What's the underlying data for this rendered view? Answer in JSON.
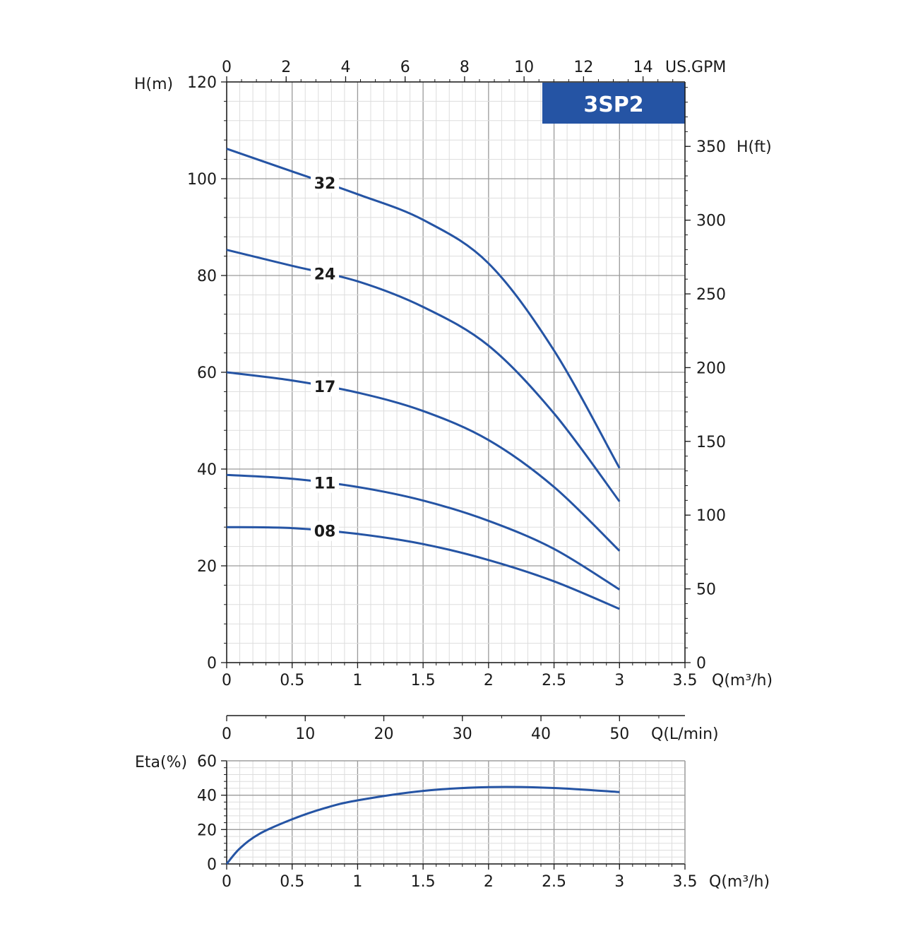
{
  "chart_data": [
    {
      "type": "line",
      "title": "",
      "badge": "3SP2",
      "xlabel": "Q(m³/h)",
      "ylabel": "H(m)",
      "xlim": [
        0,
        3.5
      ],
      "ylim": [
        0,
        120
      ],
      "x_ticks": [
        "0",
        "0.5",
        "1",
        "1.5",
        "2",
        "2.5",
        "3",
        "3.5"
      ],
      "y_ticks": [
        "0",
        "20",
        "40",
        "60",
        "80",
        "100",
        "120"
      ],
      "top_axis": {
        "label": "US.GPM",
        "ticks": [
          "0",
          "2",
          "4",
          "6",
          "8",
          "10",
          "12",
          "14"
        ],
        "range": [
          0,
          15.41
        ]
      },
      "right_axis": {
        "label": "H(ft)",
        "ticks": [
          "0",
          "50",
          "100",
          "150",
          "200",
          "250",
          "300",
          "350"
        ],
        "range": [
          0,
          393.7
        ]
      },
      "grid": true,
      "series": [
        {
          "name": "32",
          "x": [
            0,
            0.5,
            1,
            1.5,
            2,
            2.5,
            3
          ],
          "y": [
            106.2,
            101.5,
            96.8,
            91.5,
            82.5,
            64.5,
            40.2
          ]
        },
        {
          "name": "24",
          "x": [
            0,
            0.5,
            1,
            1.5,
            2,
            2.5,
            3
          ],
          "y": [
            85.3,
            82.0,
            78.8,
            73.5,
            65.5,
            51.5,
            33.3
          ]
        },
        {
          "name": "17",
          "x": [
            0,
            0.5,
            1,
            1.5,
            2,
            2.5,
            3
          ],
          "y": [
            60.0,
            58.3,
            55.8,
            52.0,
            46.0,
            36.3,
            23.1
          ]
        },
        {
          "name": "11",
          "x": [
            0,
            0.5,
            1,
            1.5,
            2,
            2.5,
            3
          ],
          "y": [
            38.8,
            38.0,
            36.3,
            33.5,
            29.3,
            23.5,
            15.1
          ]
        },
        {
          "name": "08",
          "x": [
            0,
            0.5,
            1,
            1.5,
            2,
            2.5,
            3
          ],
          "y": [
            28.0,
            27.8,
            26.6,
            24.5,
            21.2,
            16.8,
            11.1
          ]
        }
      ],
      "curve_label_x": 0.75
    },
    {
      "type": "line",
      "title": "",
      "xlabel": "Q(m³/h)",
      "ylabel": "Eta(%)",
      "xlim": [
        0,
        3.5
      ],
      "ylim": [
        0,
        60
      ],
      "x_ticks": [
        "0",
        "0.5",
        "1",
        "1.5",
        "2",
        "2.5",
        "3",
        "3.5"
      ],
      "y_ticks": [
        "0",
        "20",
        "40",
        "60"
      ],
      "top_axis": {
        "label": "Q(L/min)",
        "ticks": [
          "0",
          "10",
          "20",
          "30",
          "40",
          "50"
        ],
        "range": [
          0,
          58.33
        ]
      },
      "grid": true,
      "series": [
        {
          "name": "",
          "x": [
            0,
            0.1,
            0.25,
            0.5,
            0.75,
            1,
            1.5,
            2,
            2.5,
            3
          ],
          "y": [
            0,
            9,
            17.5,
            26,
            32.5,
            37,
            42.5,
            44.7,
            44.2,
            41.8
          ]
        }
      ]
    }
  ],
  "colors": {
    "curve": "#2554a4",
    "badge": "#2554a4",
    "grid_major": "#9a9a9a",
    "grid_minor": "#dddddd",
    "axis": "#1a1a1a"
  }
}
